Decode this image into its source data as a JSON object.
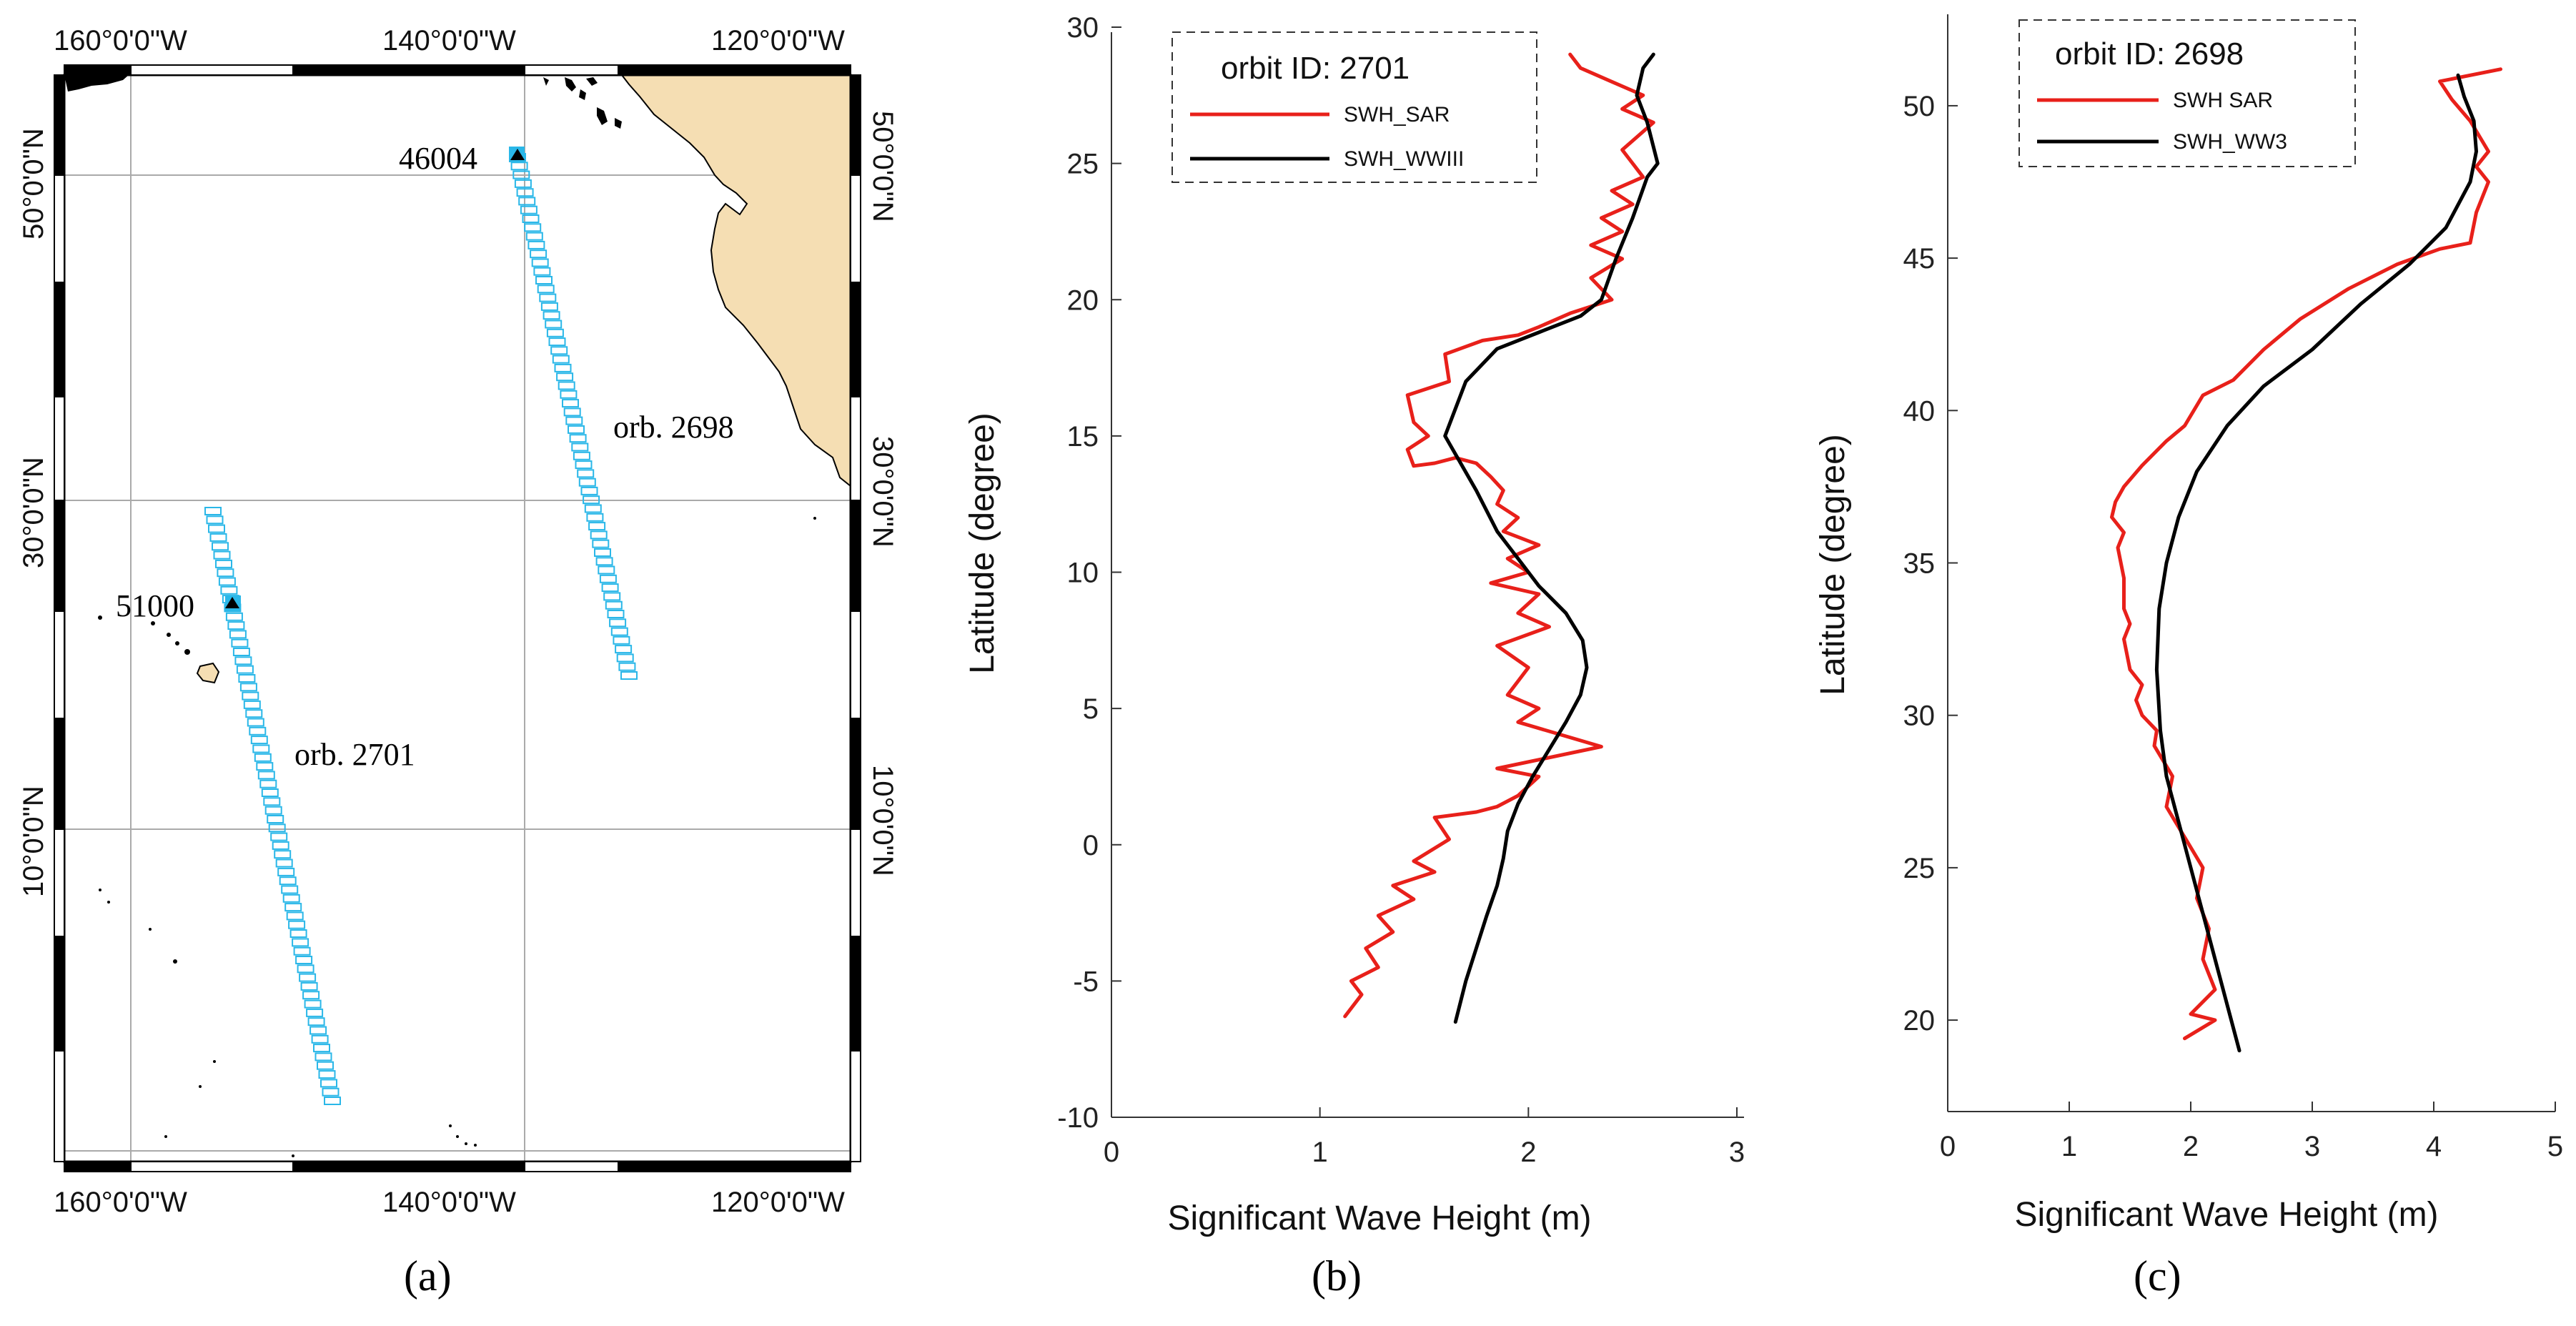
{
  "map": {
    "top_lon_labels": [
      "160°0'0\"W",
      "140°0'0\"W",
      "120°0'0\"W"
    ],
    "bottom_lon_labels": [
      "160°0'0\"W",
      "140°0'0\"W",
      "120°0'0\"W"
    ],
    "lat_labels": [
      "50°0'0\"N",
      "30°0'0\"N",
      "10°0'0\"N"
    ],
    "buoys": [
      "46004",
      "51000"
    ],
    "orbits": [
      "orb. 2698",
      "orb. 2701"
    ],
    "colors": {
      "land": "#f5deb3",
      "track": "#2ab7e8",
      "grid": "#aaaaaa"
    },
    "panel_label": "(a)"
  },
  "chart_data": [
    {
      "type": "line",
      "panel_label": "(b)",
      "legend_title": "orbit ID: 2701",
      "xlabel": "Significant Wave Height (m)",
      "ylabel": "Latitude (degree)",
      "xlim": [
        0,
        3
      ],
      "ylim": [
        -10,
        30
      ],
      "xticks": [
        0,
        1,
        2,
        3
      ],
      "yticks": [
        -10,
        -5,
        0,
        5,
        10,
        15,
        20,
        25,
        30
      ],
      "series": [
        {
          "name": "SWH_SAR",
          "color": "#e8201a",
          "x": [
            1.12,
            1.2,
            1.15,
            1.28,
            1.22,
            1.35,
            1.28,
            1.45,
            1.35,
            1.55,
            1.45,
            1.62,
            1.55,
            1.75,
            1.85,
            1.95,
            2.05,
            1.85,
            2.35,
            1.95,
            2.05,
            1.9,
            1.95,
            2.0,
            1.85,
            2.1,
            1.95,
            2.05,
            1.82,
            2.0,
            1.9,
            2.05,
            1.88,
            1.95,
            1.85,
            1.88,
            1.82,
            1.75,
            1.65,
            1.55,
            1.45,
            1.42,
            1.52,
            1.45,
            1.42,
            1.62,
            1.6,
            1.78,
            1.95,
            2.05,
            2.2,
            2.4,
            2.3,
            2.45,
            2.3,
            2.45,
            2.35,
            2.5,
            2.4,
            2.55,
            2.45,
            2.6,
            2.45,
            2.55,
            2.4,
            2.25,
            2.2
          ],
          "y": [
            -6.3,
            -5.5,
            -5.0,
            -4.5,
            -3.8,
            -3.2,
            -2.6,
            -2.0,
            -1.5,
            -1.0,
            -0.6,
            0.2,
            1.0,
            1.2,
            1.4,
            1.8,
            2.5,
            2.8,
            3.6,
            4.5,
            5.0,
            5.5,
            6.0,
            6.5,
            7.3,
            8.0,
            8.5,
            9.2,
            9.6,
            10.0,
            10.5,
            11.0,
            11.5,
            12.0,
            12.5,
            13.0,
            13.5,
            14.0,
            14.2,
            14.0,
            13.9,
            14.5,
            15.0,
            15.5,
            16.5,
            17.0,
            18.0,
            18.5,
            18.7,
            19.0,
            19.5,
            20.0,
            20.8,
            21.5,
            22.0,
            22.5,
            23.0,
            23.5,
            24.0,
            24.5,
            25.5,
            26.5,
            27.0,
            27.5,
            28.0,
            28.5,
            29.0
          ]
        },
        {
          "name": "SWH_WWIII",
          "color": "#000000",
          "x": [
            1.65,
            1.7,
            1.75,
            1.8,
            1.85,
            1.88,
            1.9,
            1.95,
            2.02,
            2.1,
            2.18,
            2.25,
            2.28,
            2.26,
            2.18,
            2.05,
            1.95,
            1.85,
            1.75,
            1.6,
            1.7,
            1.85,
            2.05,
            2.25,
            2.35,
            2.42,
            2.5,
            2.57,
            2.62,
            2.57,
            2.52,
            2.55,
            2.6
          ],
          "y": [
            -6.5,
            -5.0,
            -3.8,
            -2.6,
            -1.5,
            -0.5,
            0.5,
            1.5,
            2.5,
            3.5,
            4.5,
            5.5,
            6.5,
            7.5,
            8.5,
            9.5,
            10.5,
            11.5,
            13.0,
            15.0,
            17.0,
            18.2,
            18.8,
            19.4,
            20.0,
            21.5,
            23.0,
            24.5,
            25.0,
            26.5,
            27.5,
            28.5,
            29.0
          ]
        }
      ]
    },
    {
      "type": "line",
      "panel_label": "(c)",
      "legend_title": "orbit ID: 2698",
      "xlabel": "Significant Wave Height (m)",
      "ylabel": "Latitude (degree)",
      "xlim": [
        0,
        5
      ],
      "ylim": [
        17,
        53
      ],
      "xticks": [
        0,
        1,
        2,
        3,
        4,
        5
      ],
      "yticks": [
        20,
        25,
        30,
        35,
        40,
        45,
        50
      ],
      "series": [
        {
          "name": "SWH  SAR",
          "color": "#e8201a",
          "x": [
            1.95,
            2.2,
            2.0,
            2.2,
            2.1,
            2.15,
            2.05,
            2.1,
            1.95,
            1.8,
            1.85,
            1.7,
            1.72,
            1.6,
            1.55,
            1.6,
            1.5,
            1.45,
            1.5,
            1.45,
            1.45,
            1.4,
            1.45,
            1.35,
            1.38,
            1.45,
            1.6,
            1.8,
            1.95,
            2.1,
            2.35,
            2.6,
            2.9,
            3.3,
            3.7,
            4.05,
            4.3,
            4.35,
            4.45,
            4.35,
            4.45,
            4.3,
            4.15,
            4.05,
            4.55
          ],
          "y": [
            19.4,
            20.0,
            20.2,
            21.0,
            22.0,
            23.0,
            24.0,
            25.0,
            26.0,
            27.0,
            28.0,
            29.0,
            29.5,
            30.0,
            30.5,
            31.0,
            31.5,
            32.5,
            33.0,
            33.5,
            34.5,
            35.5,
            36.0,
            36.5,
            37.0,
            37.5,
            38.2,
            39.0,
            39.5,
            40.5,
            41.0,
            42.0,
            43.0,
            44.0,
            44.8,
            45.3,
            45.5,
            46.5,
            47.5,
            48.0,
            48.5,
            49.5,
            50.2,
            50.8,
            51.2
          ]
        },
        {
          "name": "SWH_WW3",
          "color": "#000000",
          "x": [
            2.4,
            2.3,
            2.2,
            2.1,
            2.0,
            1.9,
            1.8,
            1.75,
            1.72,
            1.74,
            1.8,
            1.9,
            2.05,
            2.3,
            2.6,
            3.0,
            3.4,
            3.8,
            4.1,
            4.3,
            4.35,
            4.33,
            4.25,
            4.2
          ],
          "y": [
            19.0,
            20.5,
            22.0,
            23.5,
            25.0,
            26.5,
            28.0,
            29.5,
            31.5,
            33.5,
            35.0,
            36.5,
            38.0,
            39.5,
            40.8,
            42.0,
            43.5,
            44.8,
            46.0,
            47.5,
            48.5,
            49.5,
            50.3,
            51.0
          ]
        }
      ]
    }
  ]
}
